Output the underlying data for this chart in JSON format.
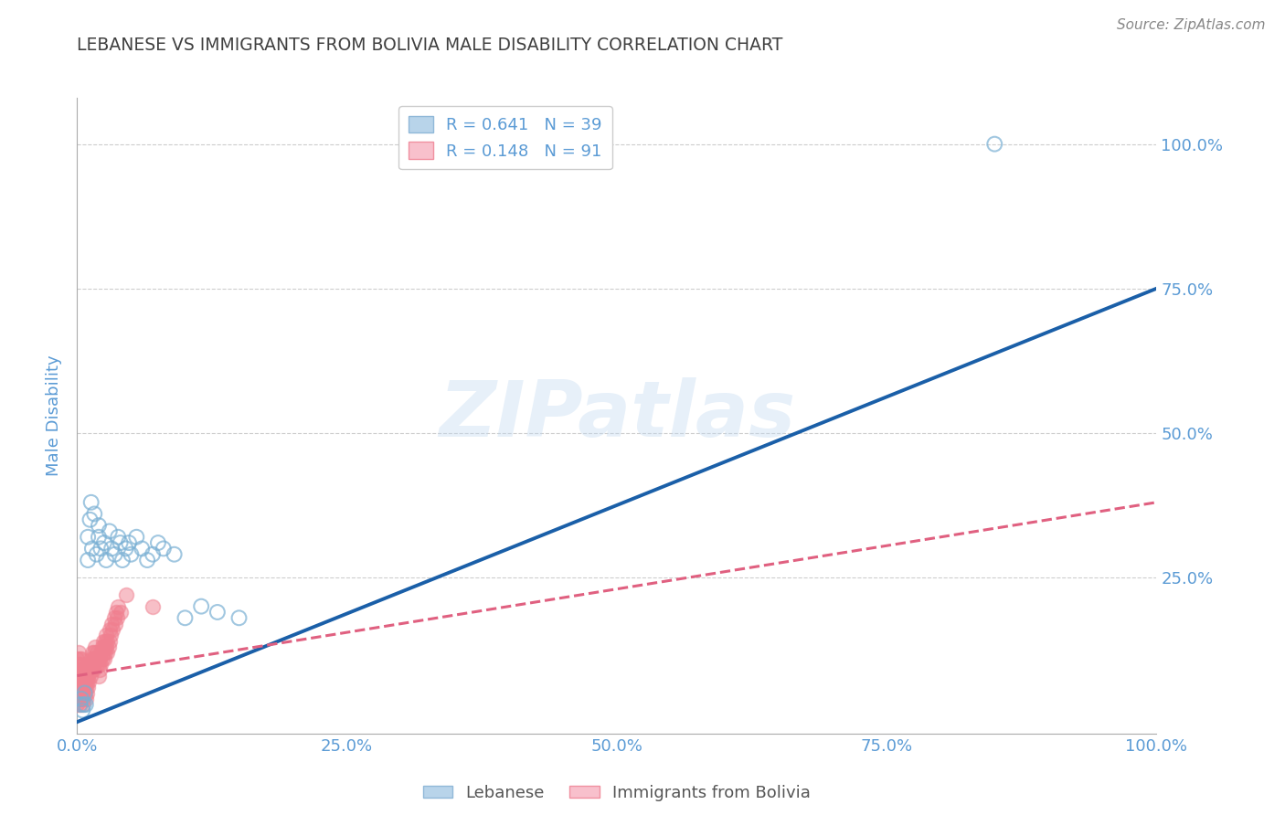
{
  "title": "LEBANESE VS IMMIGRANTS FROM BOLIVIA MALE DISABILITY CORRELATION CHART",
  "source": "Source: ZipAtlas.com",
  "ylabel": "Male Disability",
  "watermark": "ZIPatlas",
  "axis_color": "#5b9bd5",
  "title_color": "#404040",
  "grid_color": "#c8c8c8",
  "lebanese_edge_color": "#7ab0d4",
  "bolivia_face_color": "#f08090",
  "bolivia_edge_color": "#f08090",
  "blue_line_color": "#1a5fa8",
  "pink_line_color": "#e06080",
  "R_leb": "0.641",
  "N_leb": "39",
  "R_bol": "0.148",
  "N_bol": "91",
  "leb_line_y0": 0.0,
  "leb_line_y1": 0.75,
  "bol_line_y0": 0.08,
  "bol_line_y1": 0.38,
  "xlim": [
    0.0,
    1.0
  ],
  "ylim": [
    -0.02,
    1.08
  ],
  "lebanese_x": [
    0.003,
    0.004,
    0.005,
    0.006,
    0.007,
    0.008,
    0.01,
    0.01,
    0.012,
    0.013,
    0.014,
    0.016,
    0.018,
    0.02,
    0.02,
    0.022,
    0.025,
    0.027,
    0.03,
    0.032,
    0.035,
    0.038,
    0.04,
    0.042,
    0.045,
    0.048,
    0.05,
    0.055,
    0.06,
    0.065,
    0.07,
    0.075,
    0.08,
    0.09,
    0.1,
    0.115,
    0.13,
    0.15,
    0.85
  ],
  "lebanese_y": [
    0.03,
    0.04,
    0.02,
    0.03,
    0.05,
    0.03,
    0.32,
    0.28,
    0.35,
    0.38,
    0.3,
    0.36,
    0.29,
    0.32,
    0.34,
    0.3,
    0.31,
    0.28,
    0.33,
    0.3,
    0.29,
    0.32,
    0.31,
    0.28,
    0.3,
    0.31,
    0.29,
    0.32,
    0.3,
    0.28,
    0.29,
    0.31,
    0.3,
    0.29,
    0.18,
    0.2,
    0.19,
    0.18,
    1.0
  ],
  "bolivia_x": [
    0.0,
    0.0,
    0.0,
    0.0,
    0.0,
    0.001,
    0.001,
    0.001,
    0.001,
    0.001,
    0.002,
    0.002,
    0.002,
    0.002,
    0.002,
    0.003,
    0.003,
    0.003,
    0.003,
    0.004,
    0.004,
    0.004,
    0.004,
    0.005,
    0.005,
    0.005,
    0.005,
    0.006,
    0.006,
    0.006,
    0.007,
    0.007,
    0.007,
    0.008,
    0.008,
    0.008,
    0.009,
    0.009,
    0.009,
    0.01,
    0.01,
    0.01,
    0.011,
    0.011,
    0.012,
    0.012,
    0.013,
    0.013,
    0.014,
    0.014,
    0.015,
    0.015,
    0.016,
    0.016,
    0.017,
    0.017,
    0.018,
    0.018,
    0.019,
    0.02,
    0.02,
    0.021,
    0.021,
    0.022,
    0.022,
    0.023,
    0.023,
    0.024,
    0.024,
    0.025,
    0.025,
    0.026,
    0.026,
    0.027,
    0.027,
    0.028,
    0.028,
    0.029,
    0.03,
    0.03,
    0.031,
    0.032,
    0.033,
    0.034,
    0.035,
    0.036,
    0.037,
    0.038,
    0.04,
    0.045,
    0.07
  ],
  "bolivia_y": [
    0.03,
    0.05,
    0.07,
    0.09,
    0.11,
    0.04,
    0.06,
    0.08,
    0.1,
    0.12,
    0.03,
    0.05,
    0.07,
    0.09,
    0.11,
    0.04,
    0.06,
    0.08,
    0.1,
    0.05,
    0.07,
    0.09,
    0.11,
    0.03,
    0.05,
    0.07,
    0.09,
    0.04,
    0.06,
    0.08,
    0.05,
    0.07,
    0.09,
    0.04,
    0.06,
    0.08,
    0.05,
    0.07,
    0.09,
    0.06,
    0.08,
    0.1,
    0.07,
    0.09,
    0.08,
    0.1,
    0.09,
    0.11,
    0.1,
    0.12,
    0.09,
    0.11,
    0.1,
    0.12,
    0.11,
    0.13,
    0.1,
    0.12,
    0.11,
    0.08,
    0.1,
    0.09,
    0.11,
    0.1,
    0.12,
    0.11,
    0.13,
    0.12,
    0.14,
    0.11,
    0.13,
    0.12,
    0.14,
    0.13,
    0.15,
    0.12,
    0.14,
    0.13,
    0.14,
    0.16,
    0.15,
    0.17,
    0.16,
    0.18,
    0.17,
    0.19,
    0.18,
    0.2,
    0.19,
    0.22,
    0.2
  ]
}
